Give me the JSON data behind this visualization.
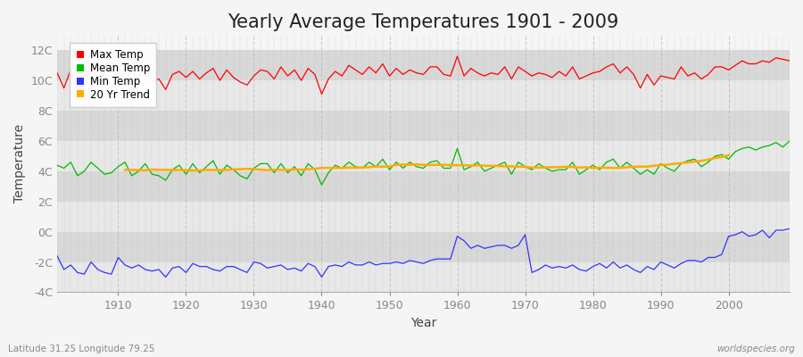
{
  "title": "Yearly Average Temperatures 1901 - 2009",
  "xlabel": "Year",
  "ylabel": "Temperature",
  "footnote_left": "Latitude 31.25 Longitude 79.25",
  "footnote_right": "worldspecies.org",
  "years": [
    1901,
    1902,
    1903,
    1904,
    1905,
    1906,
    1907,
    1908,
    1909,
    1910,
    1911,
    1912,
    1913,
    1914,
    1915,
    1916,
    1917,
    1918,
    1919,
    1920,
    1921,
    1922,
    1923,
    1924,
    1925,
    1926,
    1927,
    1928,
    1929,
    1930,
    1931,
    1932,
    1933,
    1934,
    1935,
    1936,
    1937,
    1938,
    1939,
    1940,
    1941,
    1942,
    1943,
    1944,
    1945,
    1946,
    1947,
    1948,
    1949,
    1950,
    1951,
    1952,
    1953,
    1954,
    1955,
    1956,
    1957,
    1958,
    1959,
    1960,
    1961,
    1962,
    1963,
    1964,
    1965,
    1966,
    1967,
    1968,
    1969,
    1970,
    1971,
    1972,
    1973,
    1974,
    1975,
    1976,
    1977,
    1978,
    1979,
    1980,
    1981,
    1982,
    1983,
    1984,
    1985,
    1986,
    1987,
    1988,
    1989,
    1990,
    1991,
    1992,
    1993,
    1994,
    1995,
    1996,
    1997,
    1998,
    1999,
    2000,
    2001,
    2002,
    2003,
    2004,
    2005,
    2006,
    2007,
    2008,
    2009
  ],
  "max_temp": [
    10.5,
    9.5,
    10.7,
    9.3,
    9.7,
    10.9,
    10.2,
    9.8,
    9.5,
    10.5,
    10.8,
    10.0,
    10.3,
    10.9,
    9.9,
    10.1,
    9.4,
    10.4,
    10.6,
    10.2,
    10.6,
    10.1,
    10.5,
    10.8,
    10.0,
    10.7,
    10.2,
    9.9,
    9.7,
    10.3,
    10.7,
    10.6,
    10.1,
    10.9,
    10.3,
    10.7,
    10.0,
    10.8,
    10.4,
    9.1,
    10.1,
    10.6,
    10.3,
    11.0,
    10.7,
    10.4,
    10.9,
    10.5,
    11.1,
    10.3,
    10.8,
    10.4,
    10.7,
    10.5,
    10.4,
    10.9,
    10.9,
    10.4,
    10.3,
    11.6,
    10.3,
    10.8,
    10.5,
    10.3,
    10.5,
    10.4,
    10.9,
    10.1,
    10.9,
    10.6,
    10.3,
    10.5,
    10.4,
    10.2,
    10.6,
    10.3,
    10.9,
    10.1,
    10.3,
    10.5,
    10.6,
    10.9,
    11.1,
    10.5,
    10.9,
    10.4,
    9.5,
    10.4,
    9.7,
    10.3,
    10.2,
    10.1,
    10.9,
    10.3,
    10.5,
    10.1,
    10.4,
    10.9,
    10.9,
    10.7,
    11.0,
    11.3,
    11.1,
    11.1,
    11.3,
    11.2,
    11.5,
    11.4,
    11.3
  ],
  "mean_temp": [
    4.4,
    4.2,
    4.6,
    3.7,
    4.0,
    4.6,
    4.2,
    3.8,
    3.9,
    4.3,
    4.6,
    3.7,
    4.0,
    4.5,
    3.8,
    3.7,
    3.4,
    4.1,
    4.4,
    3.8,
    4.5,
    3.9,
    4.3,
    4.7,
    3.8,
    4.4,
    4.1,
    3.7,
    3.5,
    4.2,
    4.5,
    4.5,
    3.9,
    4.5,
    3.9,
    4.3,
    3.7,
    4.5,
    4.1,
    3.1,
    3.9,
    4.4,
    4.2,
    4.6,
    4.3,
    4.2,
    4.6,
    4.3,
    4.8,
    4.1,
    4.6,
    4.2,
    4.6,
    4.3,
    4.2,
    4.6,
    4.7,
    4.2,
    4.2,
    5.5,
    4.1,
    4.3,
    4.6,
    4.0,
    4.2,
    4.4,
    4.6,
    3.8,
    4.6,
    4.3,
    4.1,
    4.5,
    4.2,
    4.0,
    4.1,
    4.1,
    4.6,
    3.8,
    4.1,
    4.4,
    4.1,
    4.6,
    4.8,
    4.2,
    4.6,
    4.2,
    3.8,
    4.1,
    3.8,
    4.5,
    4.2,
    4.0,
    4.5,
    4.7,
    4.8,
    4.3,
    4.6,
    5.0,
    5.1,
    4.8,
    5.3,
    5.5,
    5.6,
    5.4,
    5.6,
    5.7,
    5.9,
    5.6,
    6.0
  ],
  "min_temp": [
    -1.6,
    -2.5,
    -2.2,
    -2.7,
    -2.8,
    -2.0,
    -2.5,
    -2.7,
    -2.8,
    -1.7,
    -2.2,
    -2.4,
    -2.2,
    -2.5,
    -2.6,
    -2.5,
    -3.0,
    -2.4,
    -2.3,
    -2.7,
    -2.1,
    -2.3,
    -2.3,
    -2.5,
    -2.6,
    -2.3,
    -2.3,
    -2.5,
    -2.7,
    -2.0,
    -2.1,
    -2.4,
    -2.3,
    -2.2,
    -2.5,
    -2.4,
    -2.6,
    -2.1,
    -2.3,
    -3.0,
    -2.3,
    -2.2,
    -2.3,
    -2.0,
    -2.2,
    -2.2,
    -2.0,
    -2.2,
    -2.1,
    -2.1,
    -2.0,
    -2.1,
    -1.9,
    -2.0,
    -2.1,
    -1.9,
    -1.8,
    -1.8,
    -1.8,
    -0.3,
    -0.6,
    -1.1,
    -0.9,
    -1.1,
    -1.0,
    -0.9,
    -0.9,
    -1.1,
    -0.9,
    -0.2,
    -2.7,
    -2.5,
    -2.2,
    -2.4,
    -2.3,
    -2.4,
    -2.2,
    -2.5,
    -2.6,
    -2.3,
    -2.1,
    -2.4,
    -2.0,
    -2.4,
    -2.2,
    -2.5,
    -2.7,
    -2.3,
    -2.5,
    -2.0,
    -2.2,
    -2.4,
    -2.1,
    -1.9,
    -1.9,
    -2.0,
    -1.7,
    -1.7,
    -1.5,
    -0.3,
    -0.2,
    0.0,
    -0.3,
    -0.2,
    0.1,
    -0.4,
    0.1,
    0.1,
    0.2
  ],
  "colors": {
    "max": "#ff0000",
    "mean": "#00bb00",
    "min": "#3333ff",
    "trend": "#ffaa00",
    "fig_bg": "#f5f5f5",
    "plot_bg_light": "#e8e8e8",
    "plot_bg_dark": "#d8d8d8",
    "grid_v": "#cccccc",
    "grid_h": "#dddddd"
  },
  "ylim": [
    -4,
    13
  ],
  "yticks": [
    -4,
    -2,
    0,
    2,
    4,
    6,
    8,
    10,
    12
  ],
  "ytick_labels": [
    "-4C",
    "-2C",
    "0C",
    "2C",
    "4C",
    "6C",
    "8C",
    "10C",
    "12C"
  ],
  "xlim": [
    1901,
    2009
  ],
  "title_fontsize": 15,
  "axis_label_fontsize": 10,
  "tick_fontsize": 9
}
